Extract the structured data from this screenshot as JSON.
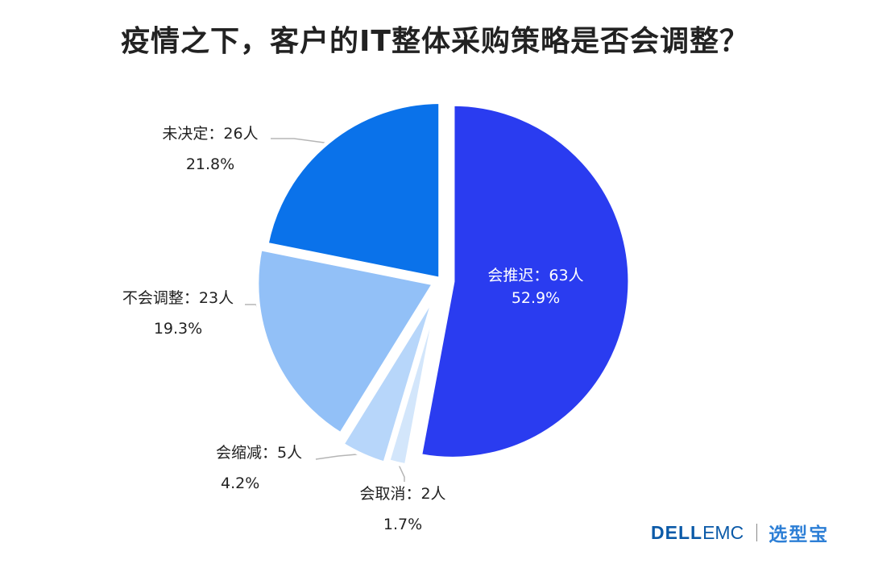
{
  "chart_data": {
    "type": "pie",
    "title": "疫情之下，客户的IT整体采购策略是否会调整？",
    "slices": [
      {
        "label": "会推迟：63人",
        "percent": "52.9%",
        "value": 63,
        "color": "#2a3cf0"
      },
      {
        "label": "会取消：2人",
        "percent": "1.7%",
        "value": 2,
        "color": "#d3e6fb"
      },
      {
        "label": "会缩减：5人",
        "percent": "4.2%",
        "value": 5,
        "color": "#b7d6fa"
      },
      {
        "label": "不会调整：23人",
        "percent": "19.3%",
        "value": 23,
        "color": "#92c0f7"
      },
      {
        "label": "未决定：26人",
        "percent": "21.8%",
        "value": 26,
        "color": "#0a72ea"
      }
    ]
  },
  "footer": {
    "brand_dell": "DELL",
    "brand_emc": "EMC",
    "brand_cn": "选型宝"
  }
}
